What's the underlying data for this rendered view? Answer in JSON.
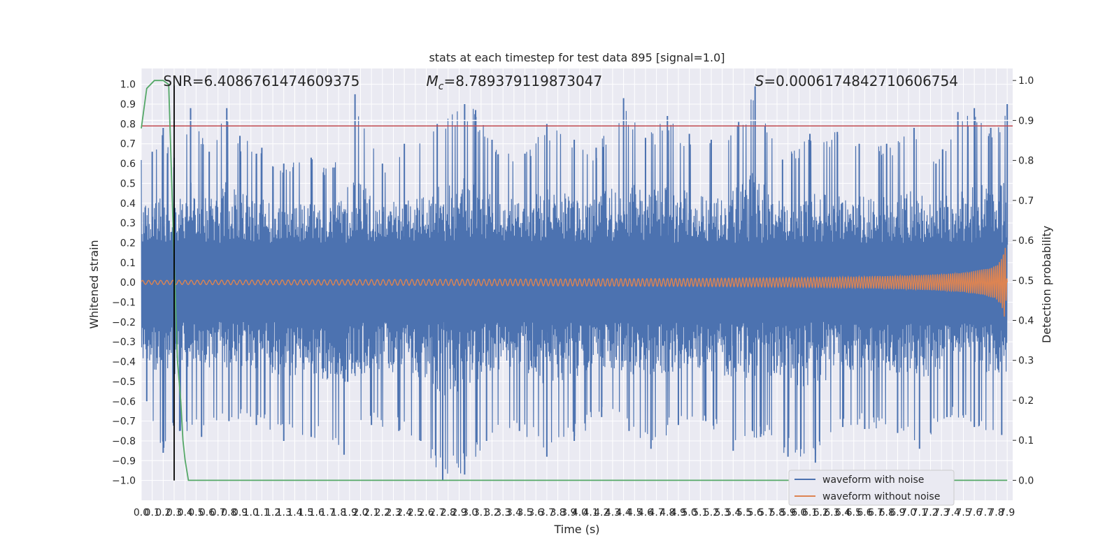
{
  "chart_data": {
    "type": "line",
    "title": "stats at each timestep for test data 895 [signal=1.0]",
    "xlabel": "Time (s)",
    "ylabel": "Whitened strain",
    "ylabel_right": "Detection probability",
    "xlim": [
      0.0,
      7.95
    ],
    "ylim": [
      -1.1,
      1.08
    ],
    "ylim_right": [
      -0.05,
      1.03
    ],
    "grid": true,
    "legend_position": "bottom-right",
    "x_ticks": [
      "0.0",
      "0.1",
      "0.2",
      "0.3",
      "0.4",
      "0.5",
      "0.6",
      "0.7",
      "0.8",
      "0.9",
      "1.0",
      "1.1",
      "1.2",
      "1.3",
      "1.4",
      "1.5",
      "1.6",
      "1.7",
      "1.8",
      "1.9",
      "2.0",
      "2.1",
      "2.2",
      "2.3",
      "2.4",
      "2.5",
      "2.6",
      "2.7",
      "2.8",
      "2.9",
      "3.0",
      "3.1",
      "3.2",
      "3.3",
      "3.4",
      "3.5",
      "3.6",
      "3.7",
      "3.8",
      "3.9",
      "4.0",
      "4.1",
      "4.2",
      "4.3",
      "4.4",
      "4.5",
      "4.6",
      "4.7",
      "4.8",
      "4.9",
      "5.0",
      "5.1",
      "5.2",
      "5.3",
      "5.4",
      "5.5",
      "5.6",
      "5.7",
      "5.8",
      "5.9",
      "6.0",
      "6.1",
      "6.2",
      "6.3",
      "6.4",
      "6.5",
      "6.6",
      "6.7",
      "6.8",
      "6.9",
      "7.0",
      "7.1",
      "7.2",
      "7.3",
      "7.4",
      "7.5",
      "7.6",
      "7.7",
      "7.8",
      "7.9"
    ],
    "y_ticks_left": [
      "1.0",
      "0.9",
      "0.8",
      "0.7",
      "0.6",
      "0.5",
      "0.4",
      "0.3",
      "0.2",
      "0.1",
      "0.0",
      "−0.1",
      "−0.2",
      "−0.3",
      "−0.4",
      "−0.5",
      "−0.6",
      "−0.7",
      "−0.8",
      "−0.9",
      "−1.0"
    ],
    "y_ticks_right": [
      "1.0",
      "0.9",
      "0.8",
      "0.7",
      "0.6",
      "0.5",
      "0.4",
      "0.3",
      "0.2",
      "0.1",
      "0.0"
    ],
    "annotations": [
      {
        "text": "SNR=6.4086761474609375",
        "x": 0.2
      },
      {
        "text": "M_c=8.789379119873047",
        "x": 2.6
      },
      {
        "text": "S=0.0006174842710606754",
        "x": 5.6
      }
    ],
    "series": [
      {
        "name": "waveform with noise",
        "color": "#4c72b0",
        "axis": "left",
        "envelope_note": "dense noise trace",
        "upper_peaks_x": [
          0.1,
          0.2,
          0.3,
          0.45,
          0.62,
          0.78,
          0.9,
          1.1,
          1.3,
          1.55,
          1.75,
          1.95,
          2.2,
          2.4,
          2.7,
          2.95,
          3.05,
          3.2,
          3.5,
          3.7,
          3.95,
          4.15,
          4.4,
          4.6,
          4.8,
          5.0,
          5.2,
          5.45,
          5.6,
          5.85,
          6.1,
          6.35,
          6.55,
          6.8,
          7.05,
          7.25,
          7.45,
          7.6,
          7.75,
          7.9
        ],
        "upper_peaks_y": [
          0.66,
          0.78,
          0.63,
          0.88,
          0.66,
          0.88,
          0.74,
          0.68,
          0.6,
          0.63,
          0.58,
          0.95,
          0.6,
          0.7,
          0.8,
          0.9,
          0.87,
          0.72,
          0.65,
          0.8,
          0.72,
          0.68,
          0.93,
          0.73,
          0.84,
          0.75,
          0.72,
          0.81,
          0.99,
          0.62,
          0.75,
          0.76,
          0.7,
          0.7,
          0.78,
          0.6,
          0.86,
          0.88,
          0.78,
          0.9
        ],
        "lower_peaks_x": [
          0.05,
          0.2,
          0.35,
          0.55,
          0.8,
          1.05,
          1.3,
          1.55,
          1.85,
          2.1,
          2.35,
          2.55,
          2.75,
          2.95,
          3.15,
          3.45,
          3.7,
          3.95,
          4.2,
          4.45,
          4.65,
          4.9,
          5.15,
          5.4,
          5.65,
          5.9,
          6.15,
          6.4,
          6.6,
          6.9,
          7.1,
          7.35,
          7.6,
          7.85
        ],
        "lower_peaks_y": [
          -0.6,
          -0.86,
          -0.75,
          -0.78,
          -0.7,
          -0.72,
          -0.8,
          -0.78,
          -0.87,
          -0.72,
          -0.75,
          -0.8,
          -1.0,
          -0.97,
          -0.8,
          -0.75,
          -0.88,
          -0.8,
          -0.68,
          -0.75,
          -0.84,
          -0.72,
          -0.7,
          -0.85,
          -0.78,
          -0.88,
          -0.91,
          -0.73,
          -0.74,
          -0.76,
          -0.84,
          -0.68,
          -0.73,
          -0.77
        ]
      },
      {
        "name": "waveform without noise",
        "color": "#dd8452",
        "axis": "left",
        "amplitude_x": [
          0.0,
          1.0,
          2.0,
          3.0,
          4.0,
          5.0,
          6.0,
          6.5,
          7.0,
          7.3,
          7.5,
          7.6,
          7.7,
          7.75,
          7.8,
          7.85,
          7.88,
          7.9
        ],
        "amplitude_y": [
          0.01,
          0.012,
          0.014,
          0.016,
          0.018,
          0.02,
          0.024,
          0.028,
          0.035,
          0.042,
          0.05,
          0.058,
          0.068,
          0.075,
          0.086,
          0.12,
          0.19,
          0.0
        ]
      },
      {
        "name": "",
        "color": "#55a868",
        "axis": "right",
        "x": [
          0.0,
          0.05,
          0.12,
          0.2,
          0.25,
          0.3,
          0.33,
          0.36,
          0.38,
          0.4,
          0.43,
          7.9
        ],
        "values": [
          0.88,
          0.98,
          1.0,
          1.0,
          0.99,
          0.55,
          0.3,
          0.2,
          0.1,
          0.05,
          0.0,
          0.0
        ]
      }
    ],
    "hlines": [
      {
        "y": 0.79,
        "color": "#c44e52",
        "axis": "left"
      },
      {
        "y": 0.9,
        "color": "#ffffff",
        "axis": "right",
        "note": "grid"
      }
    ],
    "vlines": [
      {
        "x": 0.3,
        "color": "#000000",
        "ymin": -1.0,
        "ymax": 1.0
      }
    ]
  }
}
